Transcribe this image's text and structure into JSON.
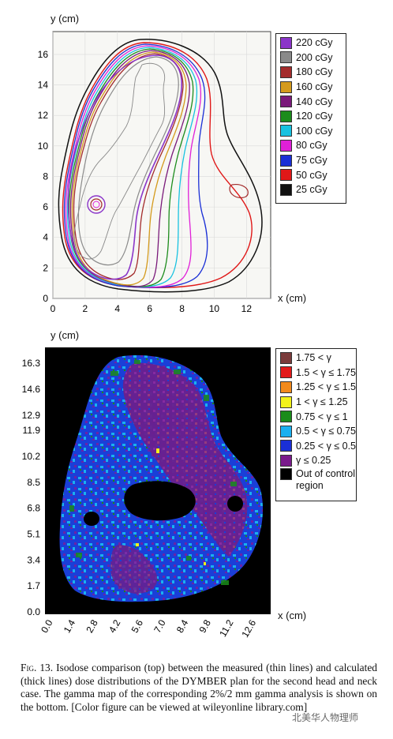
{
  "top_chart": {
    "y_label": "y (cm)",
    "x_label": "x (cm)",
    "x_ticks": [
      "0",
      "2",
      "4",
      "6",
      "8",
      "10",
      "12"
    ],
    "y_ticks": [
      "0",
      "2",
      "4",
      "6",
      "8",
      "10",
      "12",
      "14",
      "16"
    ],
    "legend": [
      {
        "label": "220 cGy",
        "color": "#8b35c9"
      },
      {
        "label": "200 cGy",
        "color": "#8a8a8a"
      },
      {
        "label": "180 cGy",
        "color": "#a32b2b"
      },
      {
        "label": "160 cGy",
        "color": "#d49a1c"
      },
      {
        "label": "140 cGy",
        "color": "#7a1a7a"
      },
      {
        "label": "120 cGy",
        "color": "#1c8c1c"
      },
      {
        "label": "100 cGy",
        "color": "#18c2e0"
      },
      {
        "label": "80 cGy",
        "color": "#e020d8"
      },
      {
        "label": "75 cGy",
        "color": "#1a2fd6"
      },
      {
        "label": "50 cGy",
        "color": "#e01818"
      },
      {
        "label": "25 cGy",
        "color": "#111111"
      }
    ]
  },
  "bottom_chart": {
    "y_label": "y (cm)",
    "x_label": "x (cm)",
    "x_ticks": [
      "0.0",
      "1.4",
      "2.8",
      "4.2",
      "5.6",
      "7.0",
      "8.4",
      "9.8",
      "11.2",
      "12.6"
    ],
    "y_ticks": [
      "0.0",
      "1.7",
      "3.4",
      "5.1",
      "6.8",
      "8.5",
      "10.2",
      "11.9",
      "12.9",
      "14.6",
      "16.3"
    ],
    "legend": [
      {
        "label": "1.75 < γ",
        "color": "#7a3b3b"
      },
      {
        "label": "1.5 < γ ≤ 1.75",
        "color": "#e21a1a"
      },
      {
        "label": "1.25 < γ ≤ 1.5",
        "color": "#f28a1c"
      },
      {
        "label": "1 < γ ≤ 1.25",
        "color": "#f2f21a"
      },
      {
        "label": "0.75 < γ ≤ 1",
        "color": "#1a8c1a"
      },
      {
        "label": "0.5 < γ ≤ 0.75",
        "color": "#1ab0f0"
      },
      {
        "label": "0.25 < γ ≤ 0.5",
        "color": "#1a2fd6"
      },
      {
        "label": "γ ≤ 0.25",
        "color": "#7a1a8c"
      },
      {
        "label": "Out of control region",
        "color": "#000000"
      }
    ]
  },
  "caption": {
    "lead": "Fig. 13.",
    "text": "Isodose comparison (top) between the measured (thin lines) and calculated (thick lines) dose distributions of the DYMBER plan for the second head and neck case. The gamma map of the corresponding 2%/2 mm gamma analysis is shown on the bottom. [Color figure can be viewed at wileyonline library.com]"
  },
  "watermark": "北美华人物理师"
}
